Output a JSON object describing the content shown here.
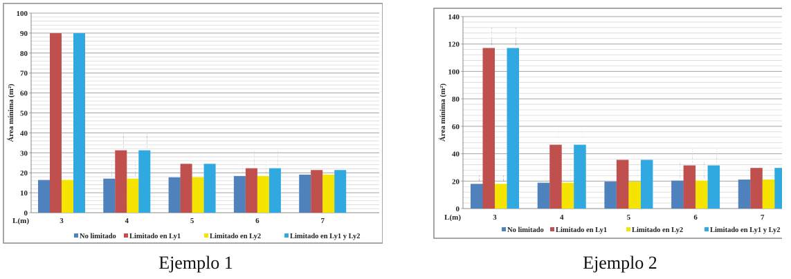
{
  "chart_data": [
    {
      "type": "bar",
      "caption": "Ejemplo 1",
      "xlabel": "L(m)",
      "ylabel": "Área mínima  (m²)",
      "categories": [
        "3",
        "4",
        "5",
        "6",
        "7"
      ],
      "ylim": [
        0,
        100
      ],
      "yticks": [
        0,
        10,
        20,
        30,
        40,
        50,
        60,
        70,
        80,
        90,
        100
      ],
      "grid": true,
      "legend_position": "bottom",
      "series": [
        {
          "name": "No limitado",
          "color": "#4f81bd",
          "values": [
            16.4,
            17.07,
            17.73,
            18.4,
            19.07
          ],
          "labels": [
            "16.4",
            "17.07",
            "17.73",
            "18.4",
            "19.07"
          ]
        },
        {
          "name": "Limitado en Ly1",
          "color": "#c0504d",
          "values": [
            89.92,
            31.27,
            24.49,
            22.28,
            21.37
          ],
          "labels": [
            "89.92",
            "31.27",
            "24.49",
            "22.28",
            "21.37"
          ]
        },
        {
          "name": "Limitado en Ly2",
          "color": "#f5e400",
          "values": [
            16.4,
            17.07,
            17.73,
            18.4,
            19.07
          ],
          "labels": [
            "16.4",
            "17.07",
            "17.73",
            "18.4",
            "19.07"
          ]
        },
        {
          "name": "Limitado en Ly1 y Ly2",
          "color": "#2fa9e0",
          "values": [
            89.92,
            31.27,
            24.49,
            22.28,
            21.37
          ],
          "labels": [
            "89.92",
            "31.27",
            "24.49",
            "22.28",
            "21.37"
          ]
        }
      ]
    },
    {
      "type": "bar",
      "caption": "Ejemplo 2",
      "xlabel": "L(m)",
      "ylabel": "Área mínima  (m²)",
      "categories": [
        "3",
        "4",
        "5",
        "6",
        "7"
      ],
      "ylim": [
        0,
        140
      ],
      "yticks": [
        0,
        20,
        40,
        60,
        80,
        100,
        120,
        140
      ],
      "grid": true,
      "legend_position": "bottom",
      "series": [
        {
          "name": "No limitado",
          "color": "#4f81bd",
          "values": [
            18,
            18.84,
            19.63,
            20.41,
            21.13
          ],
          "labels": [
            "18",
            "18.84",
            "19.63",
            "20.41",
            "21.13"
          ]
        },
        {
          "name": "Limitado en Ly1",
          "color": "#c0504d",
          "values": [
            117.08,
            46.55,
            35.52,
            31.47,
            29.63
          ],
          "labels": [
            "117.08",
            "46.55",
            "35.52",
            "31.47",
            "29.63"
          ]
        },
        {
          "name": "Limitado en Ly2",
          "color": "#f5e400",
          "values": [
            18,
            18.84,
            19.63,
            20.41,
            21.13
          ],
          "labels": [
            "18",
            "18.84",
            "19.63",
            "20.41",
            "21.13"
          ]
        },
        {
          "name": "Limitado en Ly1 y Ly2",
          "color": "#2fa9e0",
          "values": [
            117.08,
            46.55,
            35.52,
            31.47,
            29.63
          ],
          "labels": [
            "117.08",
            "46.55",
            "35.52",
            "31.47",
            "29.63"
          ]
        }
      ]
    }
  ]
}
